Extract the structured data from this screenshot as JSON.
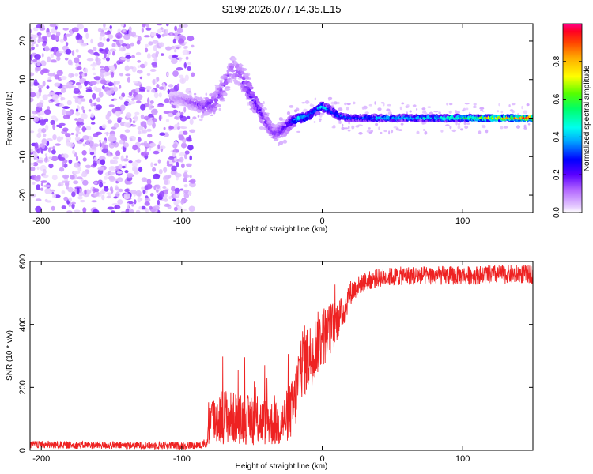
{
  "title": "S199.2026.077.14.35.E15",
  "chart_data": [
    {
      "type": "heatmap",
      "xlabel": "Height of straight line (km)",
      "ylabel": "Frequency (Hz)",
      "xlim": [
        -208,
        150
      ],
      "ylim": [
        -24.5,
        24.5
      ],
      "x_ticks": [
        -200,
        -100,
        0,
        100
      ],
      "y_ticks": [
        -20,
        -10,
        0,
        10,
        20
      ],
      "colorbar": {
        "label": "Normalized spectral amplitude",
        "range": [
          0,
          1
        ],
        "ticks": [
          0.0,
          0.2,
          0.4,
          0.6,
          0.8
        ],
        "tick_labels": [
          "0.0",
          "0.2",
          "0.4",
          "0.6",
          "0.8"
        ]
      },
      "noise_region": {
        "x": [
          -208,
          -92
        ],
        "y": [
          -24.5,
          24.5
        ],
        "amplitude": [
          0.02,
          0.18
        ]
      },
      "ridge": {
        "x": [
          -108,
          -100,
          -92,
          -84,
          -76,
          -70,
          -64,
          -58,
          -52,
          -46,
          -40,
          -34,
          -28,
          -22,
          -16,
          -10,
          -4,
          0,
          6,
          12,
          20,
          30,
          50,
          80,
          100,
          120,
          150
        ],
        "frequency": [
          5,
          5,
          4,
          3,
          4,
          8,
          13,
          11,
          7,
          3,
          -1,
          -4,
          -3,
          -1,
          0,
          0.5,
          2,
          3,
          2,
          0.5,
          0,
          0,
          0,
          0,
          0,
          0,
          0
        ],
        "spread": [
          1.5,
          1.5,
          1.5,
          2,
          3,
          3,
          3,
          3,
          3,
          2.5,
          2,
          2,
          2,
          1.5,
          1,
          1,
          1,
          1,
          1,
          0.8,
          0.7,
          0.7,
          0.7,
          0.7,
          0.7,
          0.6,
          0.6
        ],
        "amplitude": [
          0.08,
          0.1,
          0.15,
          0.18,
          0.17,
          0.15,
          0.13,
          0.16,
          0.2,
          0.22,
          0.2,
          0.16,
          0.2,
          0.3,
          0.55,
          0.4,
          0.45,
          0.5,
          0.4,
          0.35,
          0.4,
          0.42,
          0.45,
          0.5,
          0.6,
          0.85,
          1.0
        ]
      }
    },
    {
      "type": "line",
      "xlabel": "Height of straight line (km)",
      "ylabel": "SNR (10 * v/v)",
      "xlim": [
        -208,
        150
      ],
      "ylim": [
        0,
        600
      ],
      "x_ticks": [
        -200,
        -100,
        0,
        100
      ],
      "y_ticks": [
        0,
        200,
        400,
        600
      ],
      "color": "#ee2222",
      "series": [
        {
          "name": "SNR",
          "x": [
            -208,
            -150,
            -100,
            -82,
            -81,
            -70,
            -60,
            -50,
            -40,
            -30,
            -20,
            -15,
            -10,
            -5,
            0,
            5,
            10,
            15,
            20,
            25,
            30,
            40,
            60,
            80,
            100,
            120,
            150
          ],
          "level": [
            18,
            16,
            15,
            18,
            90,
            110,
            100,
            95,
            90,
            80,
            140,
            280,
            290,
            330,
            360,
            380,
            410,
            440,
            500,
            520,
            535,
            548,
            555,
            555,
            555,
            558,
            560
          ],
          "jitter": [
            12,
            12,
            12,
            12,
            80,
            90,
            80,
            80,
            75,
            70,
            100,
            120,
            110,
            100,
            100,
            90,
            70,
            50,
            40,
            30,
            30,
            30,
            30,
            30,
            30,
            30,
            30
          ]
        }
      ]
    }
  ]
}
